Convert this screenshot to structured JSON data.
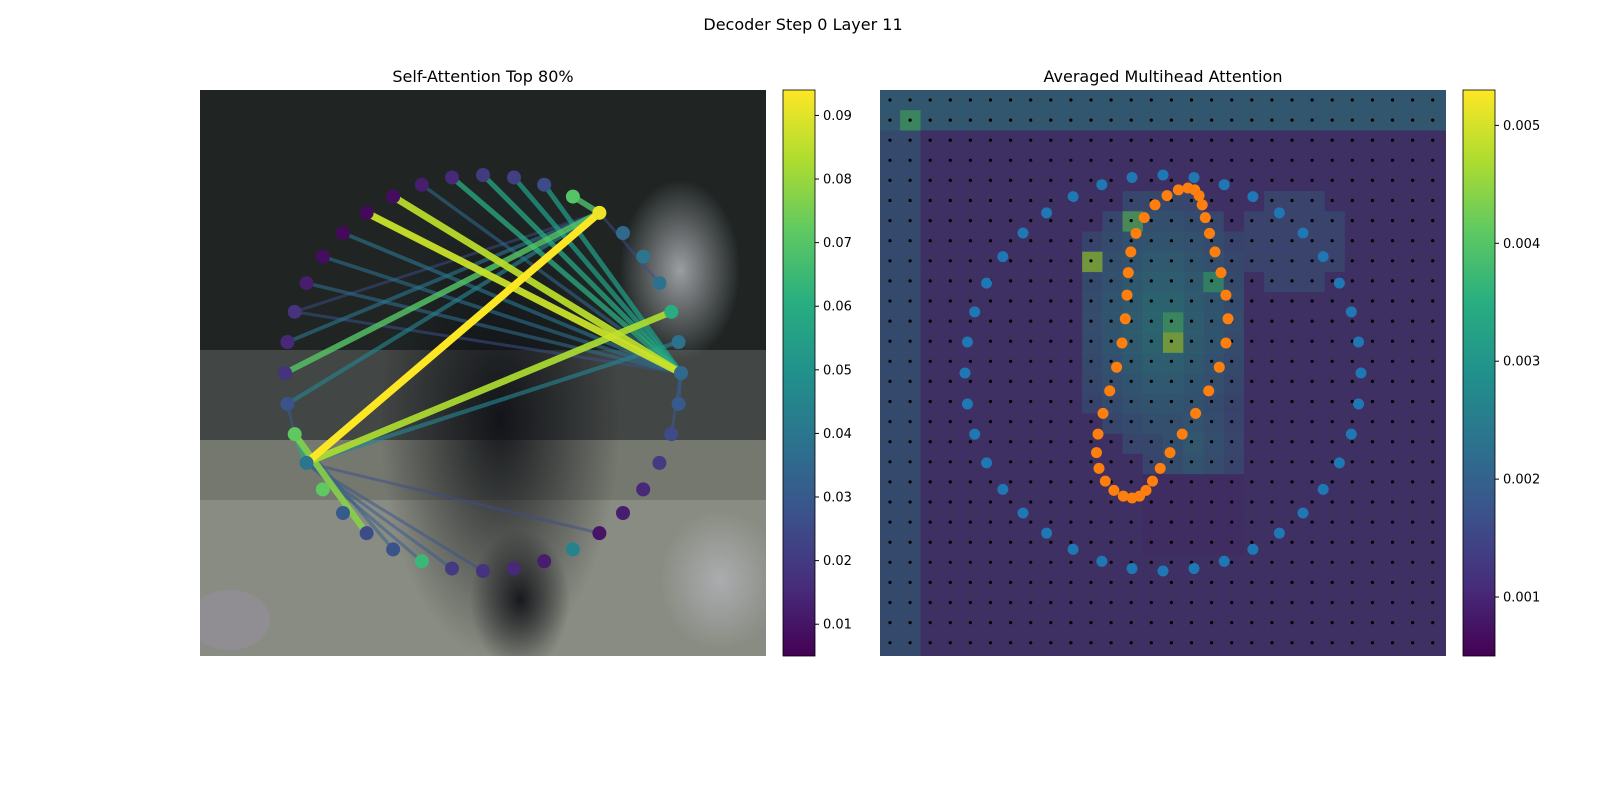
{
  "figure": {
    "title": "Decoder Step 0 Layer 11"
  },
  "chart_data": [
    {
      "type": "network",
      "title": "Self-Attention Top 80%",
      "colormap": "viridis",
      "colorbar": {
        "range": [
          0.005,
          0.094
        ],
        "ticks": [
          "0.01",
          "0.02",
          "0.03",
          "0.04",
          "0.05",
          "0.06",
          "0.07",
          "0.08",
          "0.09"
        ]
      },
      "node_count": 40,
      "node_values": [
        0.035,
        0.03,
        0.025,
        0.02,
        0.015,
        0.012,
        0.01,
        0.045,
        0.012,
        0.015,
        0.018,
        0.02,
        0.065,
        0.028,
        0.025,
        0.03,
        0.072,
        0.04,
        0.072,
        0.028,
        0.018,
        0.015,
        0.018,
        0.012,
        0.008,
        0.007,
        0.007,
        0.008,
        0.012,
        0.015,
        0.02,
        0.022,
        0.025,
        0.07,
        0.092,
        0.035,
        0.04,
        0.038,
        0.06,
        0.038
      ],
      "edges": [
        {
          "from": 34,
          "to": 17,
          "weight": 0.094
        },
        {
          "from": 0,
          "to": 26,
          "weight": 0.087
        },
        {
          "from": 0,
          "to": 27,
          "weight": 0.085
        },
        {
          "from": 38,
          "to": 17,
          "weight": 0.083
        },
        {
          "from": 18,
          "to": 14,
          "weight": 0.078
        },
        {
          "from": 34,
          "to": 20,
          "weight": 0.07
        },
        {
          "from": 33,
          "to": 34,
          "weight": 0.068
        },
        {
          "from": 17,
          "to": 18,
          "weight": 0.06
        },
        {
          "from": 0,
          "to": 29,
          "weight": 0.06
        },
        {
          "from": 0,
          "to": 30,
          "weight": 0.058
        },
        {
          "from": 0,
          "to": 31,
          "weight": 0.055
        },
        {
          "from": 0,
          "to": 32,
          "weight": 0.055
        },
        {
          "from": 34,
          "to": 19,
          "weight": 0.045
        },
        {
          "from": 39,
          "to": 17,
          "weight": 0.045
        },
        {
          "from": 34,
          "to": 21,
          "weight": 0.04
        },
        {
          "from": 0,
          "to": 25,
          "weight": 0.04
        },
        {
          "from": 0,
          "to": 24,
          "weight": 0.038
        },
        {
          "from": 0,
          "to": 23,
          "weight": 0.036
        },
        {
          "from": 0,
          "to": 28,
          "weight": 0.035
        },
        {
          "from": 0,
          "to": 1,
          "weight": 0.032
        },
        {
          "from": 0,
          "to": 2,
          "weight": 0.03
        },
        {
          "from": 18,
          "to": 13,
          "weight": 0.032
        },
        {
          "from": 17,
          "to": 12,
          "weight": 0.03
        },
        {
          "from": 17,
          "to": 11,
          "weight": 0.03
        },
        {
          "from": 18,
          "to": 19,
          "weight": 0.03
        },
        {
          "from": 17,
          "to": 10,
          "weight": 0.028
        },
        {
          "from": 22,
          "to": 34,
          "weight": 0.026
        },
        {
          "from": 17,
          "to": 6,
          "weight": 0.025
        },
        {
          "from": 37,
          "to": 34,
          "weight": 0.025
        },
        {
          "from": 0,
          "to": 22,
          "weight": 0.028
        }
      ]
    },
    {
      "type": "heatmap",
      "title": "Averaged Multihead Attention",
      "colormap": "viridis",
      "colorbar": {
        "range": [
          0.0005,
          0.0053
        ],
        "ticks": [
          "0.001",
          "0.002",
          "0.003",
          "0.004",
          "0.005"
        ]
      },
      "grid": {
        "rows": 28,
        "cols": 28
      },
      "hotspots": [
        {
          "row": 1,
          "col": 1,
          "value": 0.0038
        },
        {
          "row": 8,
          "col": 10,
          "value": 0.0046
        },
        {
          "row": 12,
          "col": 14,
          "value": 0.0046
        },
        {
          "row": 6,
          "col": 12,
          "value": 0.004
        },
        {
          "row": 11,
          "col": 14,
          "value": 0.0038
        },
        {
          "row": 9,
          "col": 16,
          "value": 0.0036
        }
      ],
      "series": [
        {
          "color": "#1f77b4",
          "points": 40
        },
        {
          "color": "#ff7f0e",
          "points": 40
        }
      ]
    }
  ],
  "colors": {
    "ring_points": "#1f77b4",
    "pred_points": "#ff7f0e",
    "grid_dots": "#000000"
  }
}
